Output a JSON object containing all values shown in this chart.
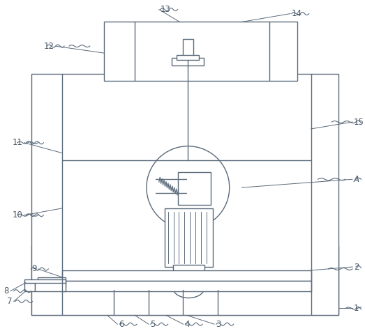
{
  "bg_color": "#ffffff",
  "line_color": "#5a6a7a",
  "label_color": "#4a5a6a",
  "fig_width": 5.23,
  "fig_height": 4.75,
  "dpi": 100
}
